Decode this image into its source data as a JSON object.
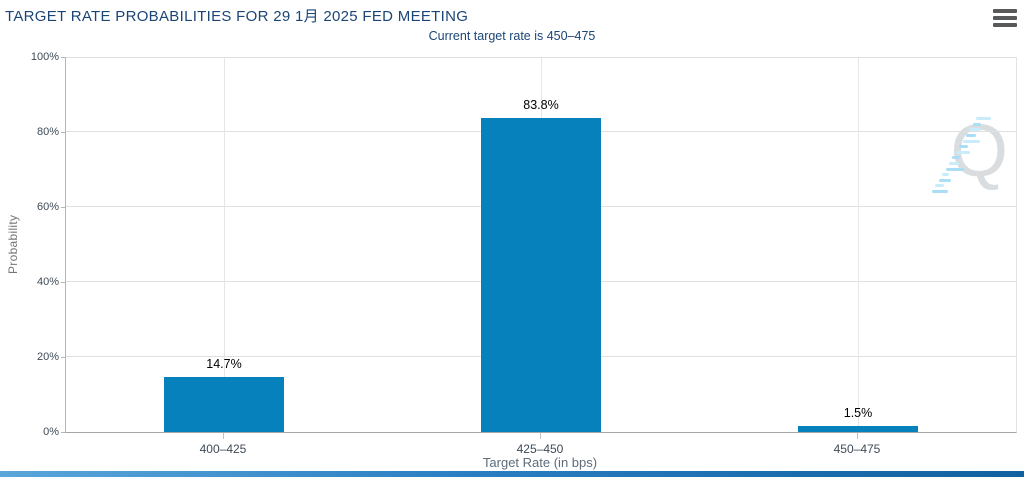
{
  "header": {
    "title": "TARGET RATE PROBABILITIES FOR 29 1月 2025 FED MEETING",
    "subtitle": "Current target rate is 450–475",
    "menu_icon": "hamburger-icon"
  },
  "chart_data": {
    "type": "bar",
    "title": "TARGET RATE PROBABILITIES FOR 29 1月 2025 FED MEETING",
    "subtitle": "Current target rate is 450–475",
    "categories": [
      "400–425",
      "425–450",
      "450–475"
    ],
    "values": [
      14.7,
      83.8,
      1.5
    ],
    "data_labels": [
      "14.7%",
      "83.8%",
      "1.5%"
    ],
    "xlabel": "Target Rate (in bps)",
    "ylabel": "Probability",
    "ylim": [
      0,
      100
    ],
    "yticks": [
      "0%",
      "20%",
      "40%",
      "60%",
      "80%",
      "100%"
    ],
    "grid": true,
    "legend": false,
    "bar_color": "#0681bc"
  },
  "watermark": {
    "letter": "Q",
    "letter_color": "#d9dde0",
    "dash_color_a": "#a9def5",
    "dash_color_b": "#c9ecfa"
  },
  "colors": {
    "title_text": "#1b4577",
    "axis_text": "#3f4b57",
    "axis_line": "#a6a6a6",
    "gridline": "#e0e0e0",
    "footer_blue": "#2a7fc2",
    "menu_icon_gray": "#58595b"
  }
}
